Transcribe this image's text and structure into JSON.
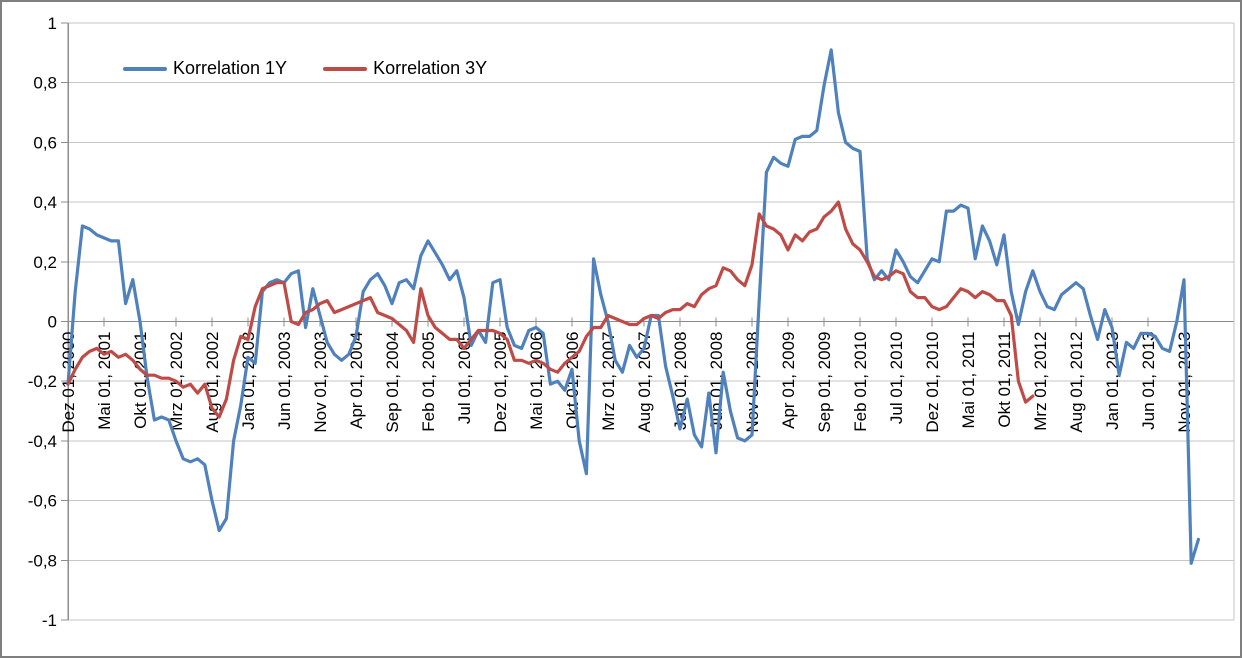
{
  "chart_data": {
    "type": "line",
    "title": "",
    "xlabel": "",
    "ylabel": "",
    "ylim": [
      -1,
      1
    ],
    "grid": true,
    "legend_position": "top-inline",
    "y_tick_labels": [
      "1",
      "0,8",
      "0,6",
      "0,4",
      "0,2",
      "0",
      "-0,2",
      "-0,4",
      "-0,6",
      "-0,8",
      "-1"
    ],
    "y_tick_values": [
      1,
      0.8,
      0.6,
      0.4,
      0.2,
      0,
      -0.2,
      -0.4,
      -0.6,
      -0.8,
      -1
    ],
    "x_tick_interval_months": 5,
    "x_tick_labels": [
      "Dez 01, 2000",
      "Mai 01, 2001",
      "Okt 01, 2001",
      "Mrz 01, 2002",
      "Aug 01, 2002",
      "Jan 01, 2003",
      "Jun 01, 2003",
      "Nov 01, 2003",
      "Apr 01, 2004",
      "Sep 01, 2004",
      "Feb 01, 2005",
      "Jul 01, 2005",
      "Dez 01, 2005",
      "Mai 01, 2006",
      "Okt 01, 2006",
      "Mrz 01, 2007",
      "Aug 01, 2007",
      "Jan 01, 2008",
      "Jun 01, 2008",
      "Nov 01, 2008",
      "Apr 01, 2009",
      "Sep 01, 2009",
      "Feb 01, 2010",
      "Jul 01, 2010",
      "Dez 01, 2010",
      "Mai 01, 2011",
      "Okt 01, 2011",
      "Mrz 01, 2012",
      "Aug 01, 2012",
      "Jan 01, 2013",
      "Jun 01, 2013",
      "Nov 01, 2013"
    ],
    "colors": {
      "series_1y": "#4F81BD",
      "series_3y": "#BF4B47",
      "gridline": "#C6C6C6",
      "axis": "#8C8C8C",
      "border": "#7F7F7F",
      "text": "#000000"
    },
    "series": [
      {
        "name": "Korrelation 1Y",
        "color": "#4F81BD",
        "start": "Dez 2000",
        "values": [
          -0.21,
          0.1,
          0.32,
          0.31,
          0.29,
          0.28,
          0.27,
          0.27,
          0.06,
          0.14,
          0.0,
          -0.19,
          -0.33,
          -0.32,
          -0.33,
          -0.4,
          -0.46,
          -0.47,
          -0.46,
          -0.48,
          -0.6,
          -0.7,
          -0.66,
          -0.4,
          -0.28,
          -0.12,
          -0.14,
          0.1,
          0.13,
          0.14,
          0.13,
          0.16,
          0.17,
          -0.02,
          0.11,
          0.02,
          -0.07,
          -0.11,
          -0.13,
          -0.11,
          -0.05,
          0.1,
          0.14,
          0.16,
          0.12,
          0.06,
          0.13,
          0.14,
          0.11,
          0.22,
          0.27,
          0.23,
          0.19,
          0.14,
          0.17,
          0.08,
          -0.08,
          -0.03,
          -0.07,
          0.13,
          0.14,
          -0.02,
          -0.08,
          -0.09,
          -0.03,
          -0.02,
          -0.04,
          -0.21,
          -0.2,
          -0.23,
          -0.16,
          -0.4,
          -0.51,
          0.21,
          0.09,
          0.0,
          -0.13,
          -0.17,
          -0.08,
          -0.12,
          -0.09,
          0.02,
          0.02,
          -0.15,
          -0.25,
          -0.36,
          -0.26,
          -0.38,
          -0.42,
          -0.24,
          -0.44,
          -0.17,
          -0.3,
          -0.39,
          -0.4,
          -0.38,
          0.07,
          0.5,
          0.55,
          0.53,
          0.52,
          0.61,
          0.62,
          0.62,
          0.64,
          0.79,
          0.91,
          0.7,
          0.6,
          0.58,
          0.57,
          0.21,
          0.14,
          0.17,
          0.14,
          0.24,
          0.2,
          0.15,
          0.13,
          0.17,
          0.21,
          0.2,
          0.37,
          0.37,
          0.39,
          0.38,
          0.21,
          0.32,
          0.27,
          0.19,
          0.29,
          0.1,
          -0.01,
          0.1,
          0.17,
          0.1,
          0.05,
          0.04,
          0.09,
          0.11,
          0.13,
          0.11,
          0.02,
          -0.06,
          0.04,
          -0.02,
          -0.18,
          -0.07,
          -0.09,
          -0.04,
          -0.04,
          -0.05,
          -0.09,
          -0.1,
          0.0,
          0.14,
          -0.81,
          -0.73
        ]
      },
      {
        "name": "Korrelation 3Y",
        "color": "#BF4B47",
        "start": "Dez 2000",
        "values": [
          -0.21,
          -0.16,
          -0.12,
          -0.1,
          -0.09,
          -0.11,
          -0.1,
          -0.12,
          -0.11,
          -0.13,
          -0.16,
          -0.18,
          -0.18,
          -0.19,
          -0.19,
          -0.2,
          -0.22,
          -0.21,
          -0.24,
          -0.21,
          -0.29,
          -0.32,
          -0.26,
          -0.13,
          -0.05,
          -0.06,
          0.05,
          0.11,
          0.12,
          0.13,
          0.13,
          0.0,
          -0.01,
          0.03,
          0.04,
          0.06,
          0.07,
          0.03,
          0.04,
          0.05,
          0.06,
          0.07,
          0.08,
          0.03,
          0.02,
          0.01,
          -0.01,
          -0.03,
          -0.07,
          0.11,
          0.02,
          -0.02,
          -0.04,
          -0.06,
          -0.06,
          -0.09,
          -0.06,
          -0.03,
          -0.03,
          -0.03,
          -0.04,
          -0.06,
          -0.13,
          -0.13,
          -0.14,
          -0.13,
          -0.14,
          -0.16,
          -0.17,
          -0.14,
          -0.12,
          -0.1,
          -0.05,
          -0.02,
          -0.02,
          0.02,
          0.01,
          0.0,
          -0.01,
          -0.01,
          0.01,
          0.02,
          0.01,
          0.03,
          0.04,
          0.04,
          0.06,
          0.05,
          0.09,
          0.11,
          0.12,
          0.18,
          0.17,
          0.14,
          0.12,
          0.19,
          0.36,
          0.32,
          0.31,
          0.29,
          0.24,
          0.29,
          0.27,
          0.3,
          0.31,
          0.35,
          0.37,
          0.4,
          0.31,
          0.26,
          0.24,
          0.2,
          0.15,
          0.14,
          0.15,
          0.17,
          0.16,
          0.1,
          0.08,
          0.08,
          0.05,
          0.04,
          0.05,
          0.08,
          0.11,
          0.1,
          0.08,
          0.1,
          0.09,
          0.07,
          0.07,
          0.02,
          -0.2,
          -0.27,
          -0.25
        ]
      }
    ]
  }
}
